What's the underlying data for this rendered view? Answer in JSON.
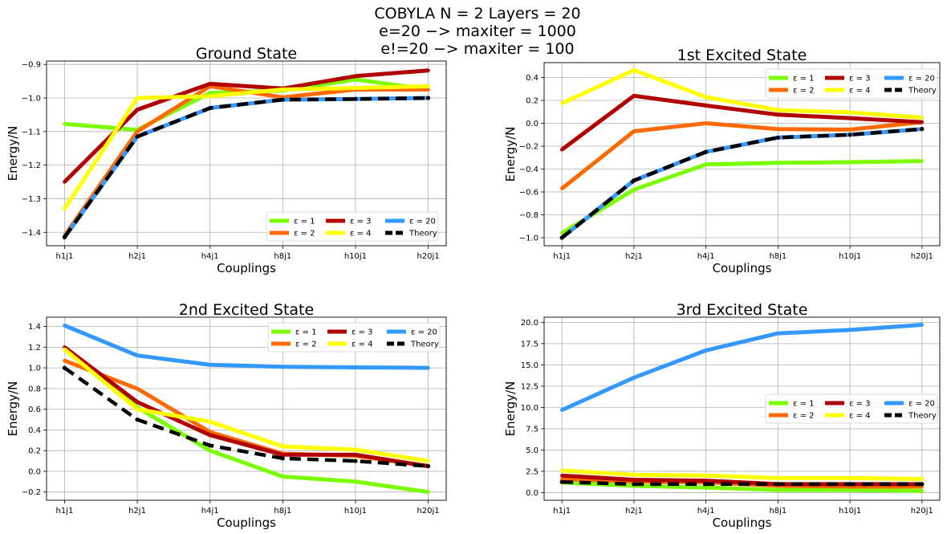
{
  "suptitle": {
    "line1": "COBYLA N = 2 Layers = 20",
    "line2": "e=20 −> maxiter = 1000",
    "line3": "e!=20 −> maxiter = 100"
  },
  "colors": {
    "eps1": "#7cfc00",
    "eps2": "#ff6a00",
    "eps3": "#b00000",
    "eps4": "#ffff00",
    "eps20": "#3399ff",
    "theory": "#000000"
  },
  "chart_data": [
    {
      "type": "line",
      "title": "Ground State",
      "xlabel": "Couplings",
      "ylabel": "Energy/N",
      "categories": [
        "h1j1",
        "h2j1",
        "h4j1",
        "h8j1",
        "h10j1",
        "h20j1"
      ],
      "ylim": [
        -1.44,
        -0.89
      ],
      "yticks": [
        -1.4,
        -1.3,
        -1.2,
        -1.1,
        -1.0,
        -0.9
      ],
      "ytick_labels": [
        "−1.4",
        "−1.3",
        "−1.2",
        "−1.1",
        "−1.0",
        "−0.9"
      ],
      "grid": true,
      "legend": "lower-right",
      "series": [
        {
          "name": "ε = 1",
          "color": "#7cfc00",
          "values": [
            -1.077,
            -1.095,
            -0.985,
            -0.978,
            -0.945,
            -0.975
          ]
        },
        {
          "name": "ε = 2",
          "color": "#ff6a00",
          "values": [
            -1.41,
            -1.1,
            -0.965,
            -0.998,
            -0.975,
            -0.975
          ]
        },
        {
          "name": "ε = 3",
          "color": "#b00000",
          "values": [
            -1.25,
            -1.035,
            -0.958,
            -0.972,
            -0.935,
            -0.918
          ]
        },
        {
          "name": "ε = 4",
          "color": "#ffff00",
          "values": [
            -1.33,
            -1.0,
            -0.995,
            -0.975,
            -0.97,
            -0.965
          ]
        },
        {
          "name": "ε = 20",
          "color": "#3399ff",
          "values": [
            -1.415,
            -1.115,
            -1.03,
            -1.005,
            -1.003,
            -1.0
          ]
        },
        {
          "name": "Theory",
          "color": "#000000",
          "dashed": true,
          "values": [
            -1.415,
            -1.115,
            -1.03,
            -1.005,
            -1.003,
            -1.0
          ]
        }
      ]
    },
    {
      "type": "line",
      "title": "1st Excited State",
      "xlabel": "Couplings",
      "ylabel": "Energy/N",
      "categories": [
        "h1j1",
        "h2j1",
        "h4j1",
        "h8j1",
        "h10j1",
        "h20j1"
      ],
      "ylim": [
        -1.07,
        0.53
      ],
      "yticks": [
        -1.0,
        -0.8,
        -0.6,
        -0.4,
        -0.2,
        0.0,
        0.2,
        0.4
      ],
      "ytick_labels": [
        "−1.0",
        "−0.8",
        "−0.6",
        "−0.4",
        "−0.2",
        "0.0",
        "0.2",
        "0.4"
      ],
      "grid": true,
      "legend": "upper-right",
      "series": [
        {
          "name": "ε = 1",
          "color": "#7cfc00",
          "values": [
            -0.96,
            -0.58,
            -0.36,
            -0.345,
            -0.34,
            -0.33
          ]
        },
        {
          "name": "ε = 2",
          "color": "#ff6a00",
          "values": [
            -0.57,
            -0.07,
            0.0,
            -0.05,
            -0.055,
            0.01
          ]
        },
        {
          "name": "ε = 3",
          "color": "#b00000",
          "values": [
            -0.23,
            0.24,
            0.155,
            0.075,
            0.045,
            0.01
          ]
        },
        {
          "name": "ε = 4",
          "color": "#ffff00",
          "values": [
            0.175,
            0.465,
            0.23,
            0.115,
            0.095,
            0.05
          ]
        },
        {
          "name": "ε = 20",
          "color": "#3399ff",
          "values": [
            -1.0,
            -0.5,
            -0.25,
            -0.125,
            -0.1,
            -0.05
          ]
        },
        {
          "name": "Theory",
          "color": "#000000",
          "dashed": true,
          "values": [
            -1.0,
            -0.5,
            -0.25,
            -0.125,
            -0.1,
            -0.05
          ]
        }
      ]
    },
    {
      "type": "line",
      "title": "2nd Excited State",
      "xlabel": "Couplings",
      "ylabel": "Energy/N",
      "categories": [
        "h1j1",
        "h2j1",
        "h4j1",
        "h8j1",
        "h10j1",
        "h20j1"
      ],
      "ylim": [
        -0.28,
        1.49
      ],
      "yticks": [
        -0.2,
        0.0,
        0.2,
        0.4,
        0.6,
        0.8,
        1.0,
        1.2,
        1.4
      ],
      "ytick_labels": [
        "−0.2",
        "0.0",
        "0.2",
        "0.4",
        "0.6",
        "0.8",
        "1.0",
        "1.2",
        "1.4"
      ],
      "grid": true,
      "legend": "upper-right",
      "series": [
        {
          "name": "ε = 1",
          "color": "#7cfc00",
          "values": [
            1.18,
            0.62,
            0.2,
            -0.05,
            -0.1,
            -0.2
          ]
        },
        {
          "name": "ε = 2",
          "color": "#ff6a00",
          "values": [
            1.07,
            0.8,
            0.38,
            0.17,
            0.15,
            0.05
          ]
        },
        {
          "name": "ε = 3",
          "color": "#b00000",
          "values": [
            1.2,
            0.67,
            0.35,
            0.16,
            0.16,
            0.05
          ]
        },
        {
          "name": "ε = 4",
          "color": "#ffff00",
          "values": [
            1.18,
            0.6,
            0.48,
            0.24,
            0.21,
            0.1
          ]
        },
        {
          "name": "ε = 20",
          "color": "#3399ff",
          "values": [
            1.41,
            1.12,
            1.03,
            1.01,
            1.005,
            1.0
          ]
        },
        {
          "name": "Theory",
          "color": "#000000",
          "dashed": true,
          "values": [
            1.0,
            0.5,
            0.25,
            0.125,
            0.1,
            0.05
          ]
        }
      ]
    },
    {
      "type": "line",
      "title": "3rd Excited State",
      "xlabel": "Couplings",
      "ylabel": "Energy/N",
      "categories": [
        "h1j1",
        "h2j1",
        "h4j1",
        "h8j1",
        "h10j1",
        "h20j1"
      ],
      "ylim": [
        -0.9,
        20.6
      ],
      "yticks": [
        0.0,
        2.5,
        5.0,
        7.5,
        10.0,
        12.5,
        15.0,
        17.5,
        20.0
      ],
      "ytick_labels": [
        "0.0",
        "2.5",
        "5.0",
        "7.5",
        "10.0",
        "12.5",
        "15.0",
        "17.5",
        "20.0"
      ],
      "grid": true,
      "legend": "center-right",
      "series": [
        {
          "name": "ε = 1",
          "color": "#7cfc00",
          "values": [
            1.2,
            0.8,
            0.6,
            0.3,
            0.3,
            0.2
          ]
        },
        {
          "name": "ε = 2",
          "color": "#ff6a00",
          "values": [
            1.6,
            1.3,
            1.2,
            0.8,
            0.7,
            0.7
          ]
        },
        {
          "name": "ε = 3",
          "color": "#b00000",
          "values": [
            2.0,
            1.5,
            1.4,
            1.0,
            1.0,
            1.0
          ]
        },
        {
          "name": "ε = 4",
          "color": "#ffff00",
          "values": [
            2.6,
            2.1,
            2.0,
            1.7,
            1.7,
            1.6
          ]
        },
        {
          "name": "ε = 20",
          "color": "#3399ff",
          "values": [
            9.7,
            13.5,
            16.7,
            18.7,
            19.1,
            19.7
          ]
        },
        {
          "name": "Theory",
          "color": "#000000",
          "dashed": true,
          "values": [
            1.25,
            1.0,
            1.0,
            1.0,
            1.0,
            1.0
          ]
        }
      ]
    }
  ]
}
